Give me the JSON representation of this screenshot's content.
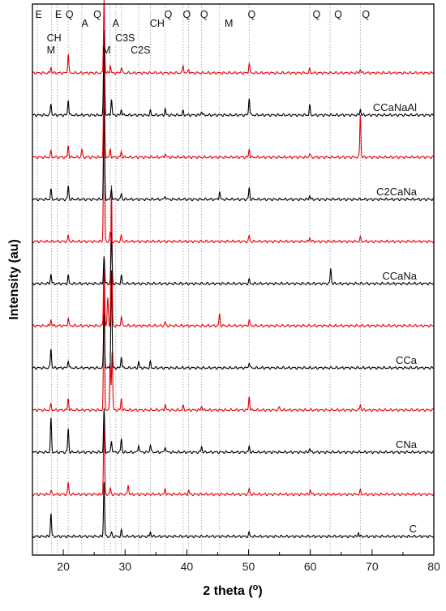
{
  "chart_data": {
    "type": "line",
    "xlabel": "2 theta (",
    "xlabel_unit": "o",
    "xlabel_close": ")",
    "ylabel": "Intensity (au)",
    "xlim": [
      15,
      80
    ],
    "x_ticks": [
      20,
      30,
      40,
      50,
      60,
      70,
      80
    ],
    "grid": false,
    "reference_lines": [
      15.8,
      18.1,
      19.0,
      20.8,
      23.0,
      26.6,
      27.6,
      28.5,
      29.4,
      32.2,
      34.1,
      36.5,
      39.4,
      40.3,
      42.4,
      45.3,
      50.1,
      59.9,
      63.2,
      68.1
    ],
    "phase_labels": [
      {
        "text": "E",
        "x": 16.0,
        "row": 0
      },
      {
        "text": "E",
        "x": 19.2,
        "row": 0
      },
      {
        "text": "Q",
        "x": 21.0,
        "row": 0
      },
      {
        "text": "Q",
        "x": 25.5,
        "row": 0
      },
      {
        "text": "A",
        "x": 23.5,
        "row": 1
      },
      {
        "text": "A",
        "x": 28.5,
        "row": 1
      },
      {
        "text": "CH",
        "x": 18.5,
        "row": 2
      },
      {
        "text": "M",
        "x": 18.0,
        "row": 3
      },
      {
        "text": "C3S",
        "x": 30.0,
        "row": 2
      },
      {
        "text": "M",
        "x": 27.0,
        "row": 3
      },
      {
        "text": "C2S",
        "x": 32.5,
        "row": 3
      },
      {
        "text": "CH",
        "x": 35.2,
        "row": 1
      },
      {
        "text": "Q",
        "x": 37.0,
        "row": 0
      },
      {
        "text": "Q",
        "x": 40.0,
        "row": 0
      },
      {
        "text": "Q",
        "x": 42.8,
        "row": 0
      },
      {
        "text": "M",
        "x": 46.8,
        "row": 1
      },
      {
        "text": "Q",
        "x": 50.5,
        "row": 0
      },
      {
        "text": "Q",
        "x": 61.0,
        "row": 0
      },
      {
        "text": "Q",
        "x": 64.5,
        "row": 0
      },
      {
        "text": "Q",
        "x": 69.0,
        "row": 0
      }
    ],
    "series": [
      {
        "name": "C",
        "color": "#000000",
        "offset": 0.0,
        "peaks": [
          {
            "x": 18.0,
            "y": 0.6
          },
          {
            "x": 26.6,
            "y": 1.4
          },
          {
            "x": 27.8,
            "y": 0.1
          },
          {
            "x": 29.4,
            "y": 0.15
          },
          {
            "x": 34.1,
            "y": 0.12
          },
          {
            "x": 50.1,
            "y": 0.1
          },
          {
            "x": 67.8,
            "y": 0.1
          }
        ]
      },
      {
        "name": "",
        "color": "#e8000b",
        "offset": 1.0,
        "peaks": [
          {
            "x": 18.0,
            "y": 0.1
          },
          {
            "x": 20.8,
            "y": 0.3
          },
          {
            "x": 26.6,
            "y": 2.0
          },
          {
            "x": 27.6,
            "y": 0.15
          },
          {
            "x": 30.5,
            "y": 0.25
          },
          {
            "x": 36.5,
            "y": 0.15
          },
          {
            "x": 40.3,
            "y": 0.1
          },
          {
            "x": 50.1,
            "y": 0.15
          },
          {
            "x": 60.0,
            "y": 0.12
          },
          {
            "x": 68.1,
            "y": 0.1
          }
        ]
      },
      {
        "name": "CNa",
        "color": "#000000",
        "offset": 2.0,
        "peaks": [
          {
            "x": 18.0,
            "y": 0.85
          },
          {
            "x": 20.8,
            "y": 0.6
          },
          {
            "x": 26.6,
            "y": 1.1
          },
          {
            "x": 27.8,
            "y": 0.3
          },
          {
            "x": 29.4,
            "y": 0.35
          },
          {
            "x": 32.2,
            "y": 0.2
          },
          {
            "x": 34.1,
            "y": 0.2
          },
          {
            "x": 36.5,
            "y": 0.15
          },
          {
            "x": 42.4,
            "y": 0.15
          },
          {
            "x": 50.1,
            "y": 0.15
          },
          {
            "x": 59.9,
            "y": 0.1
          }
        ]
      },
      {
        "name": "",
        "color": "#e8000b",
        "offset": 3.0,
        "peaks": [
          {
            "x": 18.0,
            "y": 0.15
          },
          {
            "x": 20.8,
            "y": 0.3
          },
          {
            "x": 26.6,
            "y": 3.4
          },
          {
            "x": 27.6,
            "y": 1.2
          },
          {
            "x": 27.9,
            "y": 1.5
          },
          {
            "x": 29.4,
            "y": 0.3
          },
          {
            "x": 36.5,
            "y": 0.15
          },
          {
            "x": 39.4,
            "y": 0.1
          },
          {
            "x": 42.4,
            "y": 0.1
          },
          {
            "x": 50.1,
            "y": 0.35
          },
          {
            "x": 55.0,
            "y": 0.08
          },
          {
            "x": 68.1,
            "y": 0.15
          }
        ]
      },
      {
        "name": "CCa",
        "color": "#000000",
        "offset": 4.0,
        "peaks": [
          {
            "x": 18.0,
            "y": 0.5
          },
          {
            "x": 20.8,
            "y": 0.2
          },
          {
            "x": 26.6,
            "y": 1.4
          },
          {
            "x": 27.8,
            "y": 2.5
          },
          {
            "x": 29.4,
            "y": 0.3
          },
          {
            "x": 32.2,
            "y": 0.15
          },
          {
            "x": 34.1,
            "y": 0.15
          },
          {
            "x": 50.1,
            "y": 0.15
          }
        ]
      },
      {
        "name": "",
        "color": "#e8000b",
        "offset": 5.0,
        "peaks": [
          {
            "x": 18.0,
            "y": 0.15
          },
          {
            "x": 20.8,
            "y": 0.2
          },
          {
            "x": 26.6,
            "y": 1.8
          },
          {
            "x": 27.2,
            "y": 0.7
          },
          {
            "x": 27.8,
            "y": 3.6
          },
          {
            "x": 29.4,
            "y": 0.25
          },
          {
            "x": 36.5,
            "y": 0.1
          },
          {
            "x": 45.3,
            "y": 0.3
          },
          {
            "x": 50.1,
            "y": 0.15
          }
        ]
      },
      {
        "name": "CCaNa",
        "color": "#000000",
        "offset": 6.0,
        "peaks": [
          {
            "x": 18.0,
            "y": 0.25
          },
          {
            "x": 20.8,
            "y": 0.2
          },
          {
            "x": 26.6,
            "y": 0.7
          },
          {
            "x": 27.8,
            "y": 1.3
          },
          {
            "x": 29.4,
            "y": 0.2
          },
          {
            "x": 50.1,
            "y": 0.1
          },
          {
            "x": 63.3,
            "y": 0.4
          }
        ]
      },
      {
        "name": "",
        "color": "#e8000b",
        "offset": 7.0,
        "peaks": [
          {
            "x": 20.8,
            "y": 0.15
          },
          {
            "x": 26.6,
            "y": 4.4
          },
          {
            "x": 27.6,
            "y": 0.25
          },
          {
            "x": 29.4,
            "y": 0.15
          },
          {
            "x": 50.1,
            "y": 0.15
          },
          {
            "x": 59.9,
            "y": 0.1
          },
          {
            "x": 68.1,
            "y": 0.1
          }
        ]
      },
      {
        "name": "C2CaNa",
        "color": "#000000",
        "offset": 8.0,
        "peaks": [
          {
            "x": 18.0,
            "y": 0.25
          },
          {
            "x": 20.8,
            "y": 0.35
          },
          {
            "x": 26.6,
            "y": 2.3
          },
          {
            "x": 27.8,
            "y": 0.25
          },
          {
            "x": 29.4,
            "y": 0.15
          },
          {
            "x": 36.5,
            "y": 0.1
          },
          {
            "x": 45.3,
            "y": 0.2
          },
          {
            "x": 50.1,
            "y": 0.3
          },
          {
            "x": 59.9,
            "y": 0.1
          }
        ]
      },
      {
        "name": "",
        "color": "#e8000b",
        "offset": 9.0,
        "peaks": [
          {
            "x": 18.0,
            "y": 0.15
          },
          {
            "x": 20.8,
            "y": 0.3
          },
          {
            "x": 23.0,
            "y": 0.2
          },
          {
            "x": 26.6,
            "y": 2.7
          },
          {
            "x": 27.6,
            "y": 0.2
          },
          {
            "x": 29.4,
            "y": 0.15
          },
          {
            "x": 36.5,
            "y": 0.1
          },
          {
            "x": 50.1,
            "y": 0.2
          },
          {
            "x": 59.9,
            "y": 0.1
          },
          {
            "x": 68.1,
            "y": 1.1
          }
        ]
      },
      {
        "name": "CCaNaAl",
        "color": "#000000",
        "offset": 10.0,
        "peaks": [
          {
            "x": 18.0,
            "y": 0.3
          },
          {
            "x": 20.8,
            "y": 0.4
          },
          {
            "x": 26.6,
            "y": 2.2
          },
          {
            "x": 27.8,
            "y": 0.4
          },
          {
            "x": 29.4,
            "y": 0.15
          },
          {
            "x": 34.1,
            "y": 0.1
          },
          {
            "x": 36.5,
            "y": 0.15
          },
          {
            "x": 39.4,
            "y": 0.1
          },
          {
            "x": 42.4,
            "y": 0.1
          },
          {
            "x": 50.1,
            "y": 0.45
          },
          {
            "x": 59.9,
            "y": 0.25
          },
          {
            "x": 68.1,
            "y": 0.15
          }
        ]
      },
      {
        "name": "",
        "color": "#e8000b",
        "offset": 11.0,
        "peaks": [
          {
            "x": 18.0,
            "y": 0.15
          },
          {
            "x": 20.8,
            "y": 0.5
          },
          {
            "x": 26.6,
            "y": 1.9
          },
          {
            "x": 27.6,
            "y": 0.2
          },
          {
            "x": 29.4,
            "y": 0.15
          },
          {
            "x": 39.4,
            "y": 0.2
          },
          {
            "x": 40.3,
            "y": 0.1
          },
          {
            "x": 50.1,
            "y": 0.25
          },
          {
            "x": 59.9,
            "y": 0.1
          },
          {
            "x": 68.1,
            "y": 0.1
          }
        ]
      }
    ]
  }
}
